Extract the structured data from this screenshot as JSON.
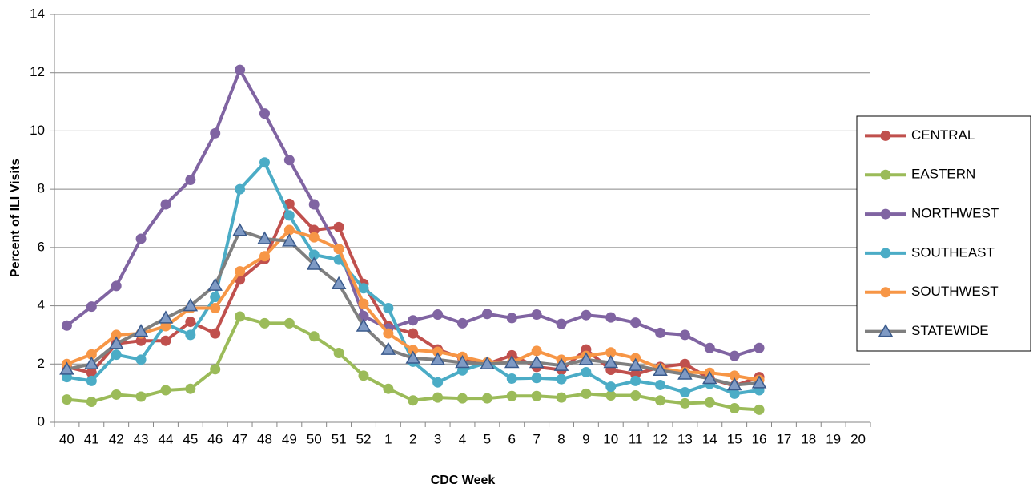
{
  "chart_data": {
    "type": "line",
    "x_label": "CDC Week",
    "y_label": "Percent of ILI Visits",
    "categories": [
      "40",
      "41",
      "42",
      "43",
      "44",
      "45",
      "46",
      "47",
      "48",
      "49",
      "50",
      "51",
      "52",
      "1",
      "2",
      "3",
      "4",
      "5",
      "6",
      "7",
      "8",
      "9",
      "10",
      "11",
      "12",
      "13",
      "14",
      "15",
      "16",
      "17",
      "18",
      "19",
      "20"
    ],
    "ylim": [
      0,
      14
    ],
    "yticks": [
      0,
      2,
      4,
      6,
      8,
      10,
      12,
      14
    ],
    "grid": true,
    "legend": "right",
    "series": [
      {
        "name": "CENTRAL",
        "color": "#c0504d",
        "marker": "circle",
        "values": [
          1.9,
          1.7,
          2.7,
          2.8,
          2.8,
          3.45,
          3.05,
          4.9,
          5.6,
          7.5,
          6.6,
          6.7,
          4.75,
          3.3,
          3.05,
          2.5,
          2.2,
          2.0,
          2.3,
          1.9,
          1.8,
          2.5,
          1.8,
          1.65,
          1.9,
          2.0,
          1.5,
          1.25,
          1.55,
          null,
          null,
          null,
          null
        ]
      },
      {
        "name": "EASTERN",
        "color": "#9bbb59",
        "marker": "circle",
        "values": [
          0.78,
          0.7,
          0.95,
          0.88,
          1.1,
          1.15,
          1.82,
          3.63,
          3.4,
          3.4,
          2.95,
          2.38,
          1.6,
          1.15,
          0.75,
          0.85,
          0.82,
          0.82,
          0.9,
          0.9,
          0.85,
          0.98,
          0.92,
          0.92,
          0.75,
          0.65,
          0.68,
          0.48,
          0.43,
          null,
          null,
          null,
          null
        ]
      },
      {
        "name": "NORTHWEST",
        "color": "#8064a2",
        "marker": "circle",
        "values": [
          3.32,
          3.97,
          4.68,
          6.3,
          7.48,
          8.32,
          9.92,
          12.1,
          10.6,
          9.0,
          7.48,
          5.95,
          3.65,
          3.22,
          3.5,
          3.7,
          3.4,
          3.72,
          3.58,
          3.7,
          3.38,
          3.68,
          3.6,
          3.42,
          3.07,
          3.0,
          2.55,
          2.28,
          2.55,
          null,
          null,
          null,
          null
        ]
      },
      {
        "name": "SOUTHEAST",
        "color": "#4bacc6",
        "marker": "circle",
        "values": [
          1.55,
          1.42,
          2.32,
          2.15,
          3.38,
          3.0,
          4.3,
          8.0,
          8.92,
          7.1,
          5.75,
          5.58,
          4.6,
          3.92,
          2.08,
          1.37,
          1.78,
          2.05,
          1.5,
          1.52,
          1.48,
          1.72,
          1.22,
          1.42,
          1.28,
          1.03,
          1.32,
          0.98,
          1.1,
          null,
          null,
          null,
          null
        ]
      },
      {
        "name": "SOUTHWEST",
        "color": "#f79646",
        "marker": "circle",
        "values": [
          2.0,
          2.33,
          3.0,
          3.05,
          3.3,
          3.92,
          3.92,
          5.18,
          5.7,
          6.6,
          6.35,
          5.95,
          4.07,
          3.05,
          2.48,
          2.42,
          2.25,
          2.05,
          2.05,
          2.45,
          2.15,
          2.28,
          2.4,
          2.2,
          1.85,
          1.72,
          1.7,
          1.6,
          1.45,
          null,
          null,
          null,
          null
        ]
      },
      {
        "name": "STATEWIDE",
        "color": "#7f7f7f",
        "marker": "triangle",
        "values": [
          1.82,
          2.0,
          2.7,
          3.12,
          3.58,
          4.0,
          4.7,
          6.58,
          6.3,
          6.22,
          5.42,
          4.75,
          3.3,
          2.5,
          2.2,
          2.15,
          2.05,
          2.0,
          2.05,
          2.05,
          1.95,
          2.15,
          2.05,
          1.95,
          1.78,
          1.65,
          1.5,
          1.28,
          1.35,
          null,
          null,
          null,
          null
        ]
      }
    ]
  }
}
